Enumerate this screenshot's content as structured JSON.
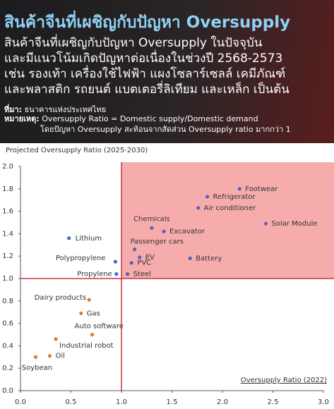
{
  "header": {
    "title": "สินค้าจีนที่เผชิญกับปัญหา Oversupply",
    "lines": [
      "สินค้าจีนที่เผชิญกับปัญหา Oversupply ในปัจจุบัน",
      "และมีแนวโน้มเกิดปัญหาต่อเนื่องในช่วงปี 2568-2573",
      "เช่น รองเท้า เครื่องใช้ไฟฟ้า แผงโซลาร์เซลล์ เคมีภัณฑ์",
      "และพลาสติก รถยนต์ แบตเตอรี่ลิเทียม และเหล็ก เป็นต้น"
    ],
    "source_label": "ที่มา:",
    "source": "ธนาคารแห่งประเทศไทย",
    "note_label": "หมายเหตุ:",
    "note": [
      "Oversupply Ratio = Domestic supply/Domestic demand",
      "โดยปัญหา Oversupply สะท้อนจากสัดส่วน Oversupply ratio มากกว่า 1"
    ]
  },
  "chart_data": {
    "type": "scatter",
    "y_label": "Projected Oversupply Ratio (2025-2030)",
    "x_label": "Oversupply Ratio (2022)",
    "xlim": [
      0,
      3
    ],
    "ylim": [
      0,
      2
    ],
    "xticks": [
      {
        "value": 0,
        "label": "0.0"
      },
      {
        "value": 0.5,
        "label": "0.5"
      },
      {
        "value": 1,
        "label": "1.0"
      },
      {
        "value": 1.5,
        "label": "1.5"
      },
      {
        "value": 2,
        "label": "2.0"
      },
      {
        "value": 2.5,
        "label": "2.5"
      },
      {
        "value": 3,
        "label": "3.0"
      }
    ],
    "yticks": [
      {
        "value": 0,
        "label": "0.0"
      },
      0.2,
      0.4,
      0.6,
      0.8,
      {
        "value": 1,
        "label": "1.0"
      },
      1.2,
      1.4,
      1.6,
      1.8,
      {
        "value": 2,
        "label": "2.0"
      }
    ],
    "ref_x": 1,
    "ref_y": 1,
    "ref_color": "#c8373a",
    "region_color": "#f6a3a3",
    "points": [
      {
        "label": "Footwear",
        "x": 2.17,
        "y": 1.8,
        "color": "#5a5fc4"
      },
      {
        "label": "Refrigerator",
        "x": 1.85,
        "y": 1.73,
        "color": "#5a5fc4"
      },
      {
        "label": "Air conditioner",
        "x": 1.76,
        "y": 1.63,
        "color": "#5a5fc4"
      },
      {
        "label": "Solar Module",
        "x": 2.43,
        "y": 1.49,
        "color": "#5a5fc4"
      },
      {
        "label": "Chemicals",
        "x": 1.3,
        "y": 1.45,
        "color": "#5a5fc4"
      },
      {
        "label": "Excavator",
        "x": 1.42,
        "y": 1.42,
        "color": "#5a5fc4"
      },
      {
        "label": "Passenger cars",
        "x": 1.13,
        "y": 1.26,
        "color": "#5a5fc4"
      },
      {
        "label": "EV",
        "x": 1.18,
        "y": 1.19,
        "color": "#5a5fc4"
      },
      {
        "label": "PVC",
        "x": 1.1,
        "y": 1.14,
        "color": "#5a5fc4"
      },
      {
        "label": "Battery",
        "x": 1.68,
        "y": 1.18,
        "color": "#5a5fc4"
      },
      {
        "label": "Steel",
        "x": 1.06,
        "y": 1.04,
        "color": "#5a5fc4"
      },
      {
        "label": "Lithium",
        "x": 0.48,
        "y": 1.36,
        "color": "#3f6cc8"
      },
      {
        "label": "Polypropylene",
        "x": 0.94,
        "y": 1.15,
        "color": "#3f6cc8"
      },
      {
        "label": "Propylene",
        "x": 0.95,
        "y": 1.04,
        "color": "#3f6cc8"
      },
      {
        "label": "Dairy products",
        "x": 0.68,
        "y": 0.81,
        "color": "#e07b2a"
      },
      {
        "label": "Gas",
        "x": 0.6,
        "y": 0.69,
        "color": "#e07b2a"
      },
      {
        "label": "Auto software",
        "x": 0.71,
        "y": 0.5,
        "color": "#e07b2a"
      },
      {
        "label": "Industrial robot",
        "x": 0.35,
        "y": 0.46,
        "color": "#e07b2a"
      },
      {
        "label": "Oil",
        "x": 0.29,
        "y": 0.31,
        "color": "#e07b2a"
      },
      {
        "label": "Soybean",
        "x": 0.15,
        "y": 0.3,
        "color": "#e07b2a"
      }
    ]
  }
}
